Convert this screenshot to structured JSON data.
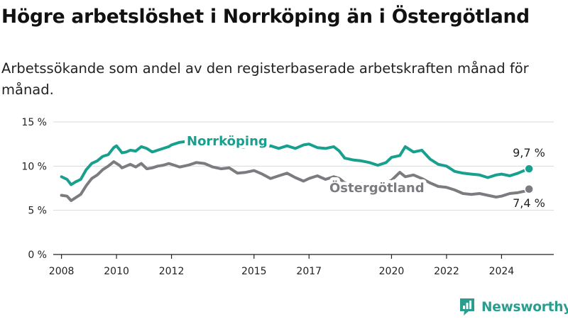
{
  "title": "Högre arbetslöshet i Norrköping än i Östergötland",
  "subtitle": "Arbetssökande som andel av den registerbaserade arbetskraften månad för månad.",
  "brand": "Newsworthy",
  "colors": {
    "norrkoping": "#18a08f",
    "ostergotland": "#7b7b80",
    "grid": "#d9d9d9",
    "axis": "#222222",
    "brand": "#2a9d8f"
  },
  "chart_data": {
    "type": "line",
    "ylim": [
      0,
      15
    ],
    "xlim": [
      2007.7,
      2025.9
    ],
    "y_ticks": [
      {
        "value": 0,
        "label": "0 %"
      },
      {
        "value": 5,
        "label": "5 %"
      },
      {
        "value": 10,
        "label": "10 %"
      },
      {
        "value": 15,
        "label": "15 %"
      }
    ],
    "x_ticks": [
      {
        "value": 2008,
        "label": "2008"
      },
      {
        "value": 2010,
        "label": "2010"
      },
      {
        "value": 2012,
        "label": "2012"
      },
      {
        "value": 2015,
        "label": "2015"
      },
      {
        "value": 2017,
        "label": "2017"
      },
      {
        "value": 2020,
        "label": "2020"
      },
      {
        "value": 2022,
        "label": "2022"
      },
      {
        "value": 2024,
        "label": "2024"
      }
    ],
    "series": [
      {
        "name": "Norrköping",
        "color": "#18a08f",
        "end_label": "9,7 %",
        "x": [
          2008.0,
          2008.2,
          2008.35,
          2008.5,
          2008.7,
          2008.9,
          2009.1,
          2009.3,
          2009.5,
          2009.7,
          2009.9,
          2010.0,
          2010.1,
          2010.2,
          2010.35,
          2010.5,
          2010.7,
          2010.9,
          2011.1,
          2011.3,
          2011.5,
          2011.7,
          2011.9,
          2012.0,
          2012.3,
          2012.6,
          2012.9,
          2013.2,
          2013.5,
          2013.8,
          2014.1,
          2014.4,
          2014.7,
          2015.0,
          2015.3,
          2015.6,
          2015.9,
          2016.2,
          2016.5,
          2016.8,
          2017.0,
          2017.3,
          2017.6,
          2017.9,
          2018.1,
          2018.3,
          2018.6,
          2018.9,
          2019.2,
          2019.5,
          2019.8,
          2020.0,
          2020.3,
          2020.5,
          2020.8,
          2021.1,
          2021.4,
          2021.7,
          2022.0,
          2022.3,
          2022.6,
          2022.9,
          2023.2,
          2023.5,
          2023.8,
          2024.0,
          2024.3,
          2024.6,
          2024.9,
          2025.0
        ],
        "y": [
          8.8,
          8.5,
          7.9,
          8.2,
          8.5,
          9.6,
          10.3,
          10.6,
          11.1,
          11.3,
          12.1,
          12.3,
          11.9,
          11.5,
          11.6,
          11.8,
          11.7,
          12.2,
          12.0,
          11.6,
          11.8,
          12.0,
          12.2,
          12.4,
          12.7,
          12.8,
          12.6,
          12.4,
          12.6,
          12.5,
          12.3,
          12.0,
          12.2,
          12.4,
          12.1,
          12.3,
          12.0,
          12.3,
          12.0,
          12.4,
          12.5,
          12.1,
          12.0,
          12.2,
          11.7,
          10.9,
          10.7,
          10.6,
          10.4,
          10.1,
          10.4,
          11.0,
          11.2,
          12.2,
          11.6,
          11.8,
          10.8,
          10.2,
          10.0,
          9.4,
          9.2,
          9.1,
          9.0,
          8.7,
          9.0,
          9.1,
          8.9,
          9.2,
          9.6,
          9.7
        ]
      },
      {
        "name": "Östergötland",
        "color": "#7b7b80",
        "end_label": "7,4 %",
        "x": [
          2008.0,
          2008.2,
          2008.35,
          2008.5,
          2008.7,
          2008.9,
          2009.1,
          2009.3,
          2009.5,
          2009.7,
          2009.9,
          2010.0,
          2010.1,
          2010.2,
          2010.35,
          2010.5,
          2010.7,
          2010.9,
          2011.1,
          2011.3,
          2011.5,
          2011.7,
          2011.9,
          2012.0,
          2012.3,
          2012.6,
          2012.9,
          2013.2,
          2013.5,
          2013.8,
          2014.1,
          2014.4,
          2014.7,
          2015.0,
          2015.3,
          2015.6,
          2015.9,
          2016.2,
          2016.5,
          2016.8,
          2017.0,
          2017.3,
          2017.6,
          2017.9,
          2018.1,
          2018.3,
          2018.6,
          2018.9,
          2019.2,
          2019.5,
          2019.8,
          2020.0,
          2020.3,
          2020.5,
          2020.8,
          2021.1,
          2021.4,
          2021.7,
          2022.0,
          2022.3,
          2022.6,
          2022.9,
          2023.2,
          2023.5,
          2023.8,
          2024.0,
          2024.3,
          2024.6,
          2024.9,
          2025.0
        ],
        "y": [
          6.7,
          6.6,
          6.1,
          6.4,
          6.8,
          7.8,
          8.6,
          9.0,
          9.6,
          10.0,
          10.5,
          10.3,
          10.1,
          9.8,
          10.0,
          10.2,
          9.9,
          10.3,
          9.7,
          9.8,
          10.0,
          10.1,
          10.3,
          10.2,
          9.9,
          10.1,
          10.4,
          10.3,
          9.9,
          9.7,
          9.8,
          9.2,
          9.3,
          9.5,
          9.1,
          8.6,
          8.9,
          9.2,
          8.7,
          8.3,
          8.6,
          8.9,
          8.5,
          8.8,
          8.6,
          8.1,
          8.0,
          8.0,
          8.0,
          8.0,
          8.1,
          8.4,
          9.3,
          8.8,
          9.0,
          8.6,
          8.1,
          7.7,
          7.6,
          7.3,
          6.9,
          6.8,
          6.9,
          6.7,
          6.5,
          6.6,
          6.9,
          7.0,
          7.2,
          7.4
        ]
      }
    ]
  }
}
